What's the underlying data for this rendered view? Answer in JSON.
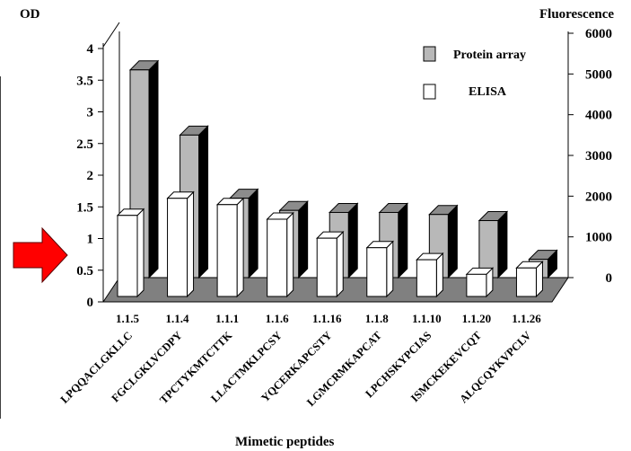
{
  "chart_data": {
    "type": "bar",
    "title": "",
    "xlabel": "Mimetic peptides",
    "ylabel_left": "OD",
    "ylabel_right": "Fluorescence",
    "categories": [
      "1.1.5",
      "1.1.4",
      "1.1.1",
      "1.1.6",
      "1.1.16",
      "1.1.8",
      "1.1.10",
      "1.1.20",
      "1.1.26"
    ],
    "sequences": [
      "LPQQACLGKLLC",
      "FGCLGKLVCDPY",
      "TPCTYKMTCTTK",
      "LLACTMKLPCSY",
      "YQCERKAPCSTY",
      "LGMCRMKAPCAT",
      "LPCHSKYPCIAS",
      "ISMCKEKEVCQT",
      "ALQCQYKVPCLV"
    ],
    "left_axis": {
      "ylim": [
        0,
        4
      ],
      "ticks": [
        "0",
        "0.5",
        "1",
        "1.5",
        "2",
        "2.5",
        "3",
        "3.5",
        "4"
      ]
    },
    "right_axis": {
      "ylim": [
        0,
        6000
      ],
      "ticks": [
        "0",
        "1000",
        "2000",
        "3000",
        "4000",
        "5000",
        "6000"
      ]
    },
    "series": [
      {
        "name": "ELISA",
        "axis": "left",
        "color": "#ffffff",
        "values": [
          1.28,
          1.55,
          1.45,
          1.22,
          0.92,
          0.77,
          0.58,
          0.35,
          0.45
        ]
      },
      {
        "name": "Protein array",
        "axis": "right",
        "color": "#b8b8b8",
        "values": [
          5100,
          3500,
          1950,
          1650,
          1600,
          1600,
          1550,
          1400,
          450
        ]
      }
    ],
    "legend": {
      "position": "top-right",
      "entries": [
        "Protein array",
        "ELISA"
      ]
    },
    "annotation": {
      "arrow_color": "#ff0000",
      "points_at": "0.5"
    },
    "grid": false
  }
}
